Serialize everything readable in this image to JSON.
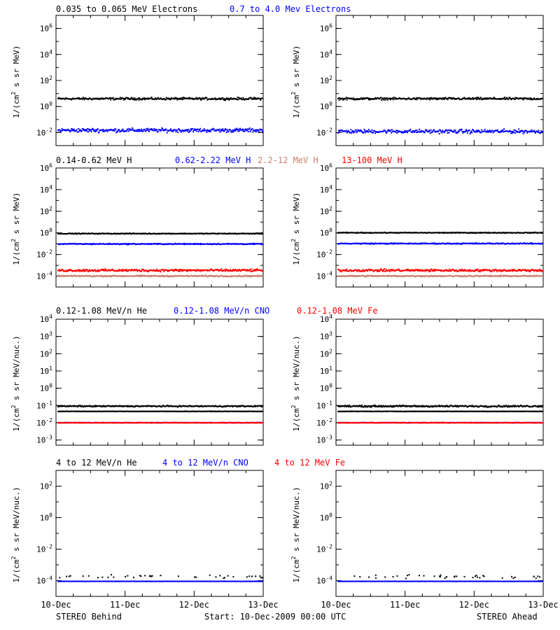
{
  "colors": {
    "black": "#000000",
    "blue": "#0000ff",
    "tan": "#c8826e",
    "red": "#ff0000",
    "axis": "#000000"
  },
  "footer": {
    "left": "STEREO Behind",
    "center": "Start: 10-Dec-2009 00:00 UTC",
    "right": "STEREO Ahead"
  },
  "x_ticks": [
    "10-Dec",
    "11-Dec",
    "12-Dec",
    "13-Dec"
  ],
  "chart_data": [
    {
      "type": "scatter",
      "row": 1,
      "legend": [
        {
          "name": "0.035 to 0.065 MeV Electrons",
          "color": "#000000"
        },
        {
          "name": "0.7 to 4.0 Mev Electrons",
          "color": "#0000ff"
        }
      ],
      "ylabel_parts": [
        "1/(cm",
        "2",
        " s sr MeV)"
      ],
      "yscale": "log",
      "ylim_exp": [
        -3,
        7
      ],
      "ytick_exps": [
        -2,
        0,
        2,
        4,
        6
      ],
      "xlim_days": [
        0,
        3
      ],
      "panels": [
        {
          "side": "behind",
          "series": [
            {
              "color": "#000000",
              "level": 4.5,
              "spread": 0.07
            },
            {
              "color": "#0000ff",
              "level": 0.017,
              "spread": 0.12
            }
          ]
        },
        {
          "side": "ahead",
          "series": [
            {
              "color": "#000000",
              "level": 4.5,
              "spread": 0.07
            },
            {
              "color": "#0000ff",
              "level": 0.014,
              "spread": 0.12
            }
          ]
        }
      ]
    },
    {
      "type": "scatter",
      "row": 2,
      "legend": [
        {
          "name": "0.14-0.62 MeV H",
          "color": "#000000"
        },
        {
          "name": "0.62-2.22 MeV H",
          "color": "#0000ff"
        },
        {
          "name": "2.2-12 MeV H",
          "color": "#c8826e"
        },
        {
          "name": "13-100 MeV H",
          "color": "#ff0000"
        }
      ],
      "ylabel_parts": [
        "1/(cm",
        "2",
        " s sr MeV)"
      ],
      "yscale": "log",
      "ylim_exp": [
        -5,
        6
      ],
      "ytick_exps": [
        -4,
        -2,
        0,
        2,
        4,
        6
      ],
      "xlim_days": [
        0,
        3
      ],
      "panels": [
        {
          "side": "behind",
          "series": [
            {
              "color": "#000000",
              "level": 1.0,
              "spread": 0.03
            },
            {
              "color": "#0000ff",
              "level": 0.11,
              "spread": 0.04
            },
            {
              "color": "#c8826e",
              "level": 0.00012,
              "spread": 0.05
            },
            {
              "color": "#ff0000",
              "level": 0.0004,
              "spread": 0.09
            }
          ]
        },
        {
          "side": "ahead",
          "series": [
            {
              "color": "#000000",
              "level": 1.2,
              "spread": 0.03
            },
            {
              "color": "#0000ff",
              "level": 0.12,
              "spread": 0.04
            },
            {
              "color": "#c8826e",
              "level": 0.00012,
              "spread": 0.05
            },
            {
              "color": "#ff0000",
              "level": 0.0004,
              "spread": 0.09
            }
          ]
        }
      ]
    },
    {
      "type": "scatter",
      "row": 3,
      "legend": [
        {
          "name": "0.12-1.08 MeV/n He",
          "color": "#000000"
        },
        {
          "name": "0.12-1.08 MeV/n CNO",
          "color": "#0000ff"
        },
        {
          "name": "0.12-1.08 MeV Fe",
          "color": "#ff0000"
        }
      ],
      "ylabel_parts": [
        "1/(cm",
        "2",
        " s sr MeV/nuc.)"
      ],
      "yscale": "log",
      "ylim_exp": [
        -3.3,
        4
      ],
      "ytick_exps": [
        -3,
        -2,
        -1,
        0,
        1,
        2,
        3,
        4
      ],
      "xlim_days": [
        0,
        3
      ],
      "panels": [
        {
          "side": "behind",
          "series": [
            {
              "color": "#000000",
              "level": 0.05,
              "spread": 0.01
            },
            {
              "color": "#000000",
              "level": 0.1,
              "spread": 0.03
            },
            {
              "color": "#0000ff",
              "level": 0.011,
              "spread": 0.01
            },
            {
              "color": "#ff0000",
              "level": 0.011,
              "spread": 0.01
            }
          ]
        },
        {
          "side": "ahead",
          "series": [
            {
              "color": "#000000",
              "level": 0.05,
              "spread": 0.01
            },
            {
              "color": "#000000",
              "level": 0.1,
              "spread": 0.04
            },
            {
              "color": "#0000ff",
              "level": 0.011,
              "spread": 0.01
            },
            {
              "color": "#ff0000",
              "level": 0.011,
              "spread": 0.01
            }
          ]
        }
      ]
    },
    {
      "type": "scatter",
      "row": 4,
      "legend": [
        {
          "name": "4 to 12 MeV/n He",
          "color": "#000000"
        },
        {
          "name": "4 to 12 MeV/n CNO",
          "color": "#0000ff"
        },
        {
          "name": "4 to 12 MeV Fe",
          "color": "#ff0000"
        }
      ],
      "ylabel_parts": [
        "1/(cm",
        "2",
        " s sr MeV/nuc.)"
      ],
      "yscale": "log",
      "ylim_exp": [
        -5,
        3
      ],
      "ytick_exps": [
        -4,
        -2,
        0,
        2
      ],
      "xlim_days": [
        0,
        3
      ],
      "panels": [
        {
          "side": "behind",
          "series": [
            {
              "color": "#0000ff",
              "level": 0.0001,
              "spread": 0.005
            },
            {
              "color": "#000000",
              "level": 0.0002,
              "spread": 0.1,
              "sparse": true
            }
          ]
        },
        {
          "side": "ahead",
          "series": [
            {
              "color": "#0000ff",
              "level": 0.0001,
              "spread": 0.005
            },
            {
              "color": "#000000",
              "level": 0.0002,
              "spread": 0.1,
              "sparse": true
            }
          ]
        }
      ]
    }
  ]
}
